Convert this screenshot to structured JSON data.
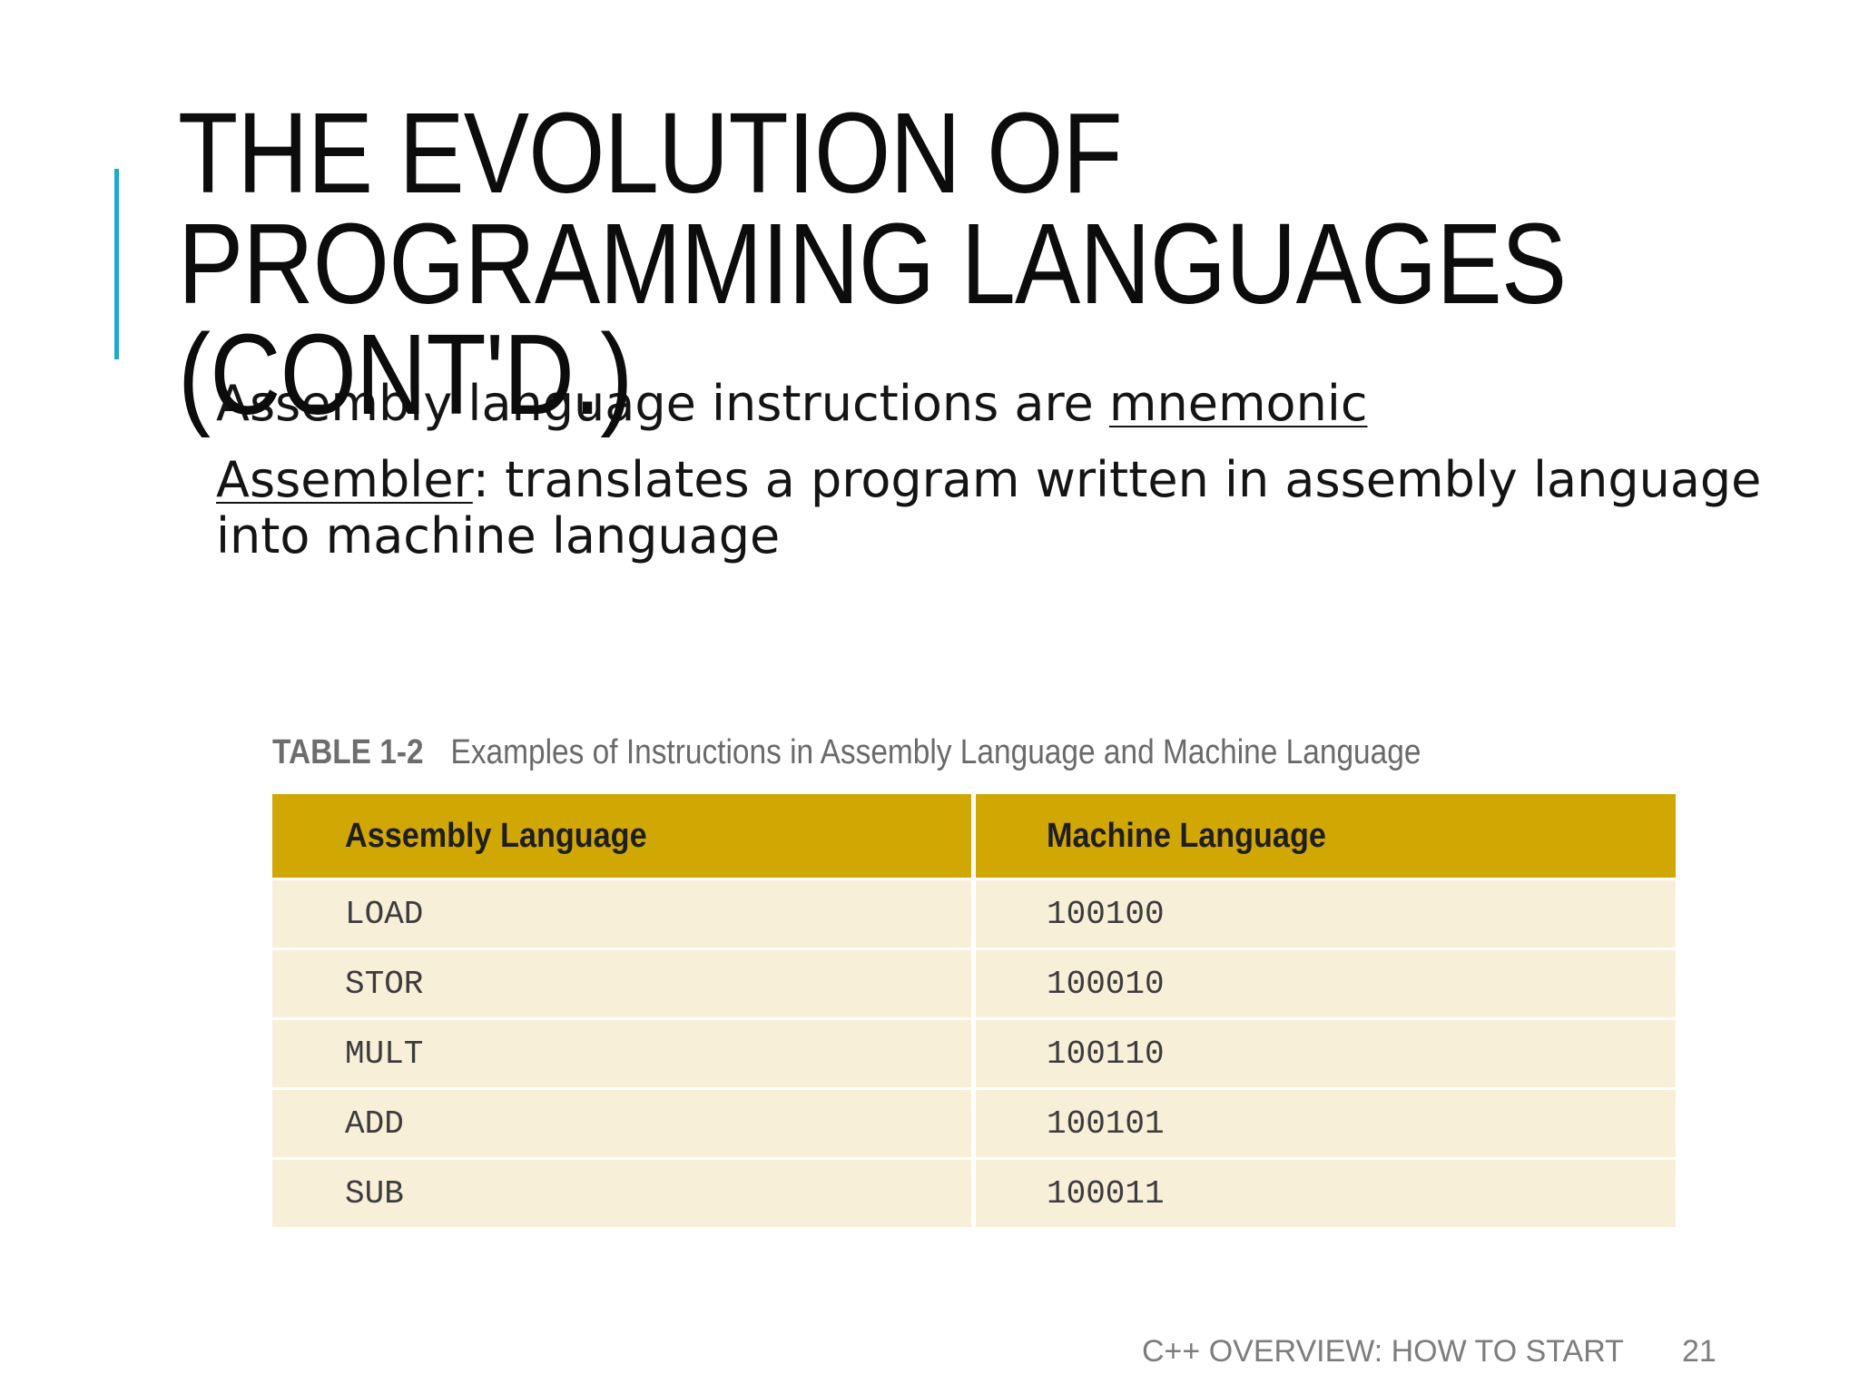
{
  "slide": {
    "title_lines": [
      "THE EVOLUTION OF",
      "PROGRAMMING LANGUAGES",
      "(CONT'D.)"
    ],
    "accent_color": "#1fa8cf",
    "bullets": [
      {
        "prefix": "Assembly language instructions are ",
        "underlined": "mnemonic",
        "suffix": ""
      },
      {
        "prefix": "",
        "underlined": "Assembler",
        "suffix": ": translates a program written in assembly language into machine language"
      }
    ]
  },
  "table": {
    "caption_label": "TABLE 1-2",
    "caption_text": "Examples of Instructions in Assembly Language and Machine Language",
    "header_color": "#d1a704",
    "row_color": "#f8efd9",
    "headers": [
      "Assembly Language",
      "Machine Language"
    ],
    "rows": [
      [
        "LOAD",
        "100100"
      ],
      [
        "STOR",
        "100010"
      ],
      [
        "MULT",
        "100110"
      ],
      [
        "ADD",
        "100101"
      ],
      [
        "SUB",
        "100011"
      ]
    ]
  },
  "footer": {
    "text": "C++ OVERVIEW: HOW TO START",
    "page_number": "21"
  }
}
